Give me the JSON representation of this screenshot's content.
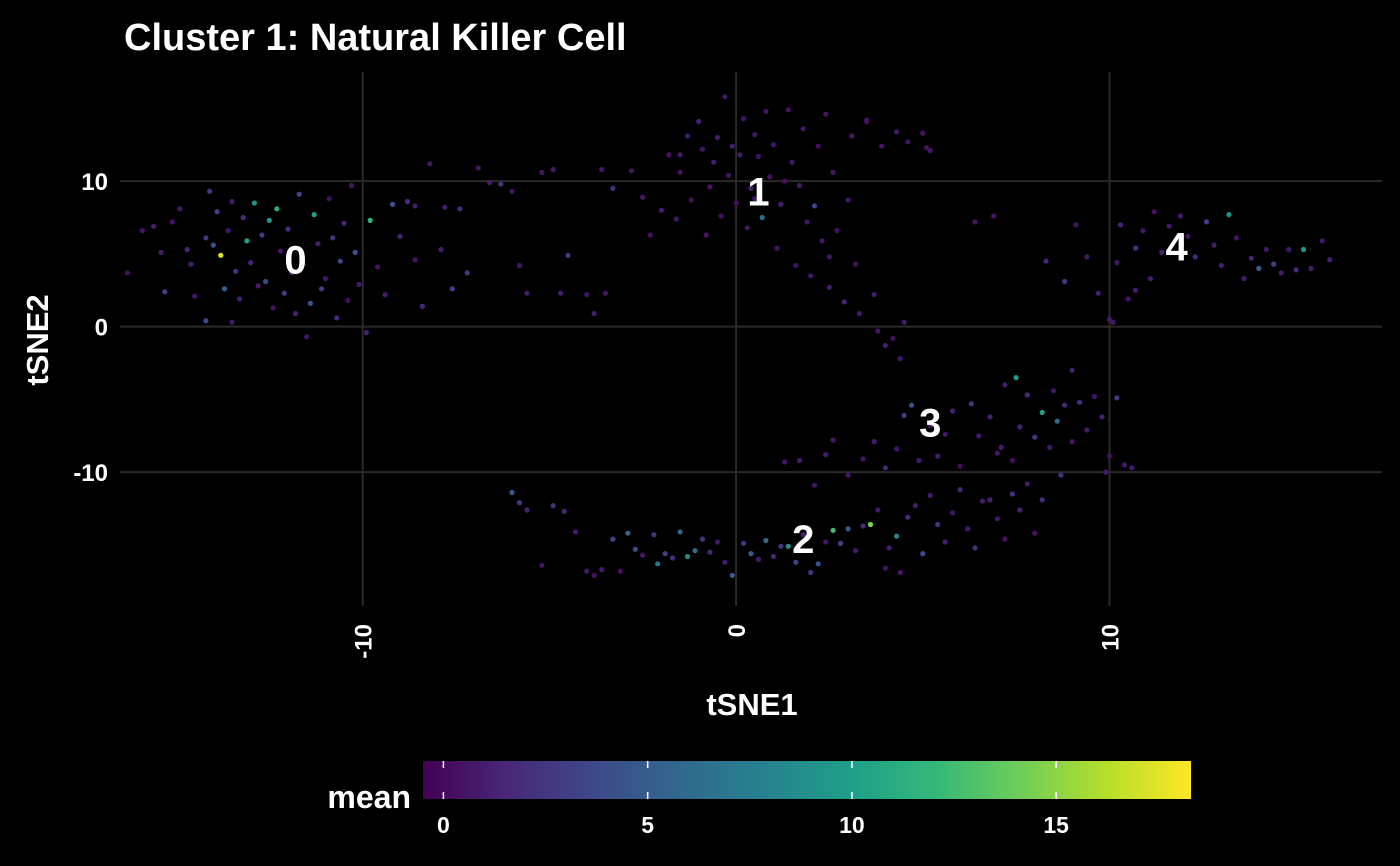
{
  "chart_data": {
    "type": "scatter",
    "title": "Cluster 1: Natural Killer Cell",
    "xlabel": "tSNE1",
    "ylabel": "tSNE2",
    "xlim": [
      -16.5,
      17.3
    ],
    "ylim": [
      -19.2,
      17.5
    ],
    "x_ticks": [
      -10,
      0,
      10
    ],
    "x_tick_labels": [
      "-10",
      "0",
      "10"
    ],
    "y_ticks": [
      -10,
      0,
      10
    ],
    "y_tick_labels": [
      "-10",
      "0",
      "10"
    ],
    "grid": true,
    "background": "#000000",
    "color_scale": {
      "name": "viridis",
      "title": "mean",
      "min": -0.5,
      "max": 18.3,
      "ticks": [
        0,
        5,
        10,
        15
      ],
      "tick_labels": [
        "0",
        "5",
        "10",
        "15"
      ],
      "legend_position": "bottom",
      "colors": [
        "#440154",
        "#482878",
        "#3e4989",
        "#31688e",
        "#26828e",
        "#1f9e89",
        "#35b779",
        "#6ece58",
        "#b5de2b",
        "#fde725"
      ]
    },
    "cluster_labels": [
      {
        "text": "0",
        "x": -11.8,
        "y": 4.6
      },
      {
        "text": "1",
        "x": 0.6,
        "y": 9.3
      },
      {
        "text": "2",
        "x": 1.8,
        "y": -14.6
      },
      {
        "text": "3",
        "x": 5.2,
        "y": -6.6
      },
      {
        "text": "4",
        "x": 11.8,
        "y": 5.5
      }
    ],
    "points": [
      [
        -16.3,
        3.7,
        0.3
      ],
      [
        -15.9,
        6.6,
        0.4
      ],
      [
        -15.6,
        6.9,
        1.2
      ],
      [
        -15.4,
        5.1,
        0.8
      ],
      [
        -15.1,
        7.2,
        0.5
      ],
      [
        -14.9,
        8.1,
        0.6
      ],
      [
        -14.7,
        5.3,
        1.5
      ],
      [
        -14.6,
        4.3,
        0.9
      ],
      [
        -14.5,
        2.1,
        0.7
      ],
      [
        -14.2,
        6.1,
        2.1
      ],
      [
        -14.1,
        9.3,
        2.4
      ],
      [
        -14.0,
        5.6,
        4.3
      ],
      [
        -13.9,
        7.9,
        3.1
      ],
      [
        -13.8,
        4.9,
        17.5
      ],
      [
        -13.7,
        2.6,
        5.5
      ],
      [
        -13.6,
        6.6,
        0.6
      ],
      [
        -13.5,
        8.6,
        0.9
      ],
      [
        -13.4,
        3.8,
        2.2
      ],
      [
        -13.3,
        1.9,
        1.1
      ],
      [
        -13.2,
        7.5,
        1.8
      ],
      [
        -13.1,
        5.9,
        10.1
      ],
      [
        -13.0,
        4.4,
        1.4
      ],
      [
        -12.9,
        8.5,
        8.8
      ],
      [
        -12.8,
        2.8,
        0.8
      ],
      [
        -12.7,
        6.3,
        2.6
      ],
      [
        -12.6,
        3.1,
        3.7
      ],
      [
        -12.5,
        7.3,
        9.2
      ],
      [
        -12.4,
        1.3,
        0.4
      ],
      [
        -12.3,
        8.1,
        11.2
      ],
      [
        -12.2,
        5.2,
        0.7
      ],
      [
        -12.1,
        2.3,
        2.9
      ],
      [
        -12.0,
        6.7,
        1.6
      ],
      [
        -11.9,
        3.7,
        0.9
      ],
      [
        -11.8,
        0.9,
        1.3
      ],
      [
        -11.7,
        9.1,
        3.3
      ],
      [
        -11.6,
        4.3,
        2.0
      ],
      [
        -11.5,
        -0.7,
        0.5
      ],
      [
        -11.4,
        1.6,
        4.4
      ],
      [
        -11.3,
        7.7,
        10.2
      ],
      [
        -11.2,
        5.7,
        1.1
      ],
      [
        -11.1,
        2.6,
        3.0
      ],
      [
        -11.0,
        3.3,
        0.6
      ],
      [
        -10.9,
        8.8,
        0.4
      ],
      [
        -10.8,
        6.1,
        2.4
      ],
      [
        -10.7,
        0.6,
        1.7
      ],
      [
        -10.6,
        4.5,
        3.4
      ],
      [
        -10.5,
        7.1,
        1.1
      ],
      [
        -10.4,
        1.8,
        0.3
      ],
      [
        -10.3,
        9.7,
        0.7
      ],
      [
        -10.2,
        5.1,
        3.9
      ],
      [
        -10.1,
        2.9,
        0.8
      ],
      [
        -9.9,
        -0.4,
        1.2
      ],
      [
        -9.8,
        7.3,
        11.8
      ],
      [
        -9.6,
        4.1,
        0.5
      ],
      [
        -9.4,
        2.2,
        0.9
      ],
      [
        -9.2,
        8.4,
        4.5
      ],
      [
        -9.0,
        6.2,
        1.3
      ],
      [
        -8.8,
        8.6,
        2.0
      ],
      [
        -8.6,
        4.6,
        0.4
      ],
      [
        -8.4,
        1.4,
        1.7
      ],
      [
        -8.2,
        11.2,
        0.6
      ],
      [
        -7.9,
        5.3,
        1.0
      ],
      [
        -7.6,
        2.6,
        3.2
      ],
      [
        -7.4,
        8.1,
        1.8
      ],
      [
        -7.2,
        3.7,
        2.6
      ],
      [
        -6.9,
        10.9,
        0.5
      ],
      [
        -6.6,
        9.9,
        0.8
      ],
      [
        -6.3,
        9.8,
        2.5
      ],
      [
        -6.0,
        9.3,
        0.4
      ],
      [
        -5.8,
        4.2,
        0.6
      ],
      [
        -5.6,
        2.3,
        0.9
      ],
      [
        -5.2,
        10.6,
        0.5
      ],
      [
        -4.9,
        10.8,
        0.7
      ],
      [
        -4.7,
        2.3,
        1.1
      ],
      [
        -4.5,
        4.9,
        2.8
      ],
      [
        -4.0,
        2.2,
        0.3
      ],
      [
        -3.8,
        0.9,
        1.0
      ],
      [
        -3.5,
        2.3,
        0.5
      ],
      [
        -3.3,
        9.5,
        2.1
      ],
      [
        -2.8,
        10.7,
        0.4
      ],
      [
        -2.5,
        8.9,
        0.7
      ],
      [
        -2.3,
        6.3,
        0.3
      ],
      [
        -2.0,
        8.0,
        0.9
      ],
      [
        -1.8,
        11.8,
        0.5
      ],
      [
        -1.6,
        7.4,
        0.6
      ],
      [
        -1.5,
        10.6,
        0.4
      ],
      [
        -1.3,
        13.1,
        0.8
      ],
      [
        -1.2,
        8.7,
        0.3
      ],
      [
        -1.0,
        14.1,
        1.2
      ],
      [
        -0.9,
        12.2,
        0.5
      ],
      [
        -0.8,
        6.3,
        0.6
      ],
      [
        -0.7,
        9.6,
        0.4
      ],
      [
        -0.6,
        11.3,
        1.0
      ],
      [
        -0.5,
        13.0,
        0.7
      ],
      [
        -0.4,
        7.6,
        0.3
      ],
      [
        -0.3,
        15.8,
        0.5
      ],
      [
        -0.2,
        10.4,
        0.4
      ],
      [
        -0.1,
        12.4,
        0.9
      ],
      [
        0.0,
        8.5,
        0.3
      ],
      [
        0.1,
        11.8,
        0.7
      ],
      [
        0.2,
        14.3,
        0.4
      ],
      [
        0.3,
        6.8,
        0.5
      ],
      [
        0.4,
        9.5,
        1.1
      ],
      [
        0.5,
        13.2,
        0.6
      ],
      [
        0.6,
        11.7,
        0.4
      ],
      [
        0.7,
        7.5,
        6.3
      ],
      [
        0.8,
        14.8,
        0.5
      ],
      [
        0.9,
        10.3,
        0.3
      ],
      [
        1.0,
        12.5,
        0.7
      ],
      [
        1.1,
        5.4,
        0.5
      ],
      [
        1.2,
        8.4,
        1.0
      ],
      [
        1.4,
        14.9,
        0.4
      ],
      [
        1.5,
        11.3,
        0.6
      ],
      [
        1.6,
        4.2,
        0.3
      ],
      [
        1.7,
        9.7,
        0.8
      ],
      [
        1.8,
        13.6,
        0.5
      ],
      [
        1.9,
        7.2,
        0.4
      ],
      [
        2.0,
        3.5,
        0.7
      ],
      [
        2.1,
        8.3,
        3.6
      ],
      [
        2.2,
        12.4,
        0.3
      ],
      [
        2.3,
        5.9,
        0.6
      ],
      [
        2.4,
        14.6,
        0.5
      ],
      [
        2.5,
        2.7,
        0.9
      ],
      [
        2.6,
        10.6,
        0.4
      ],
      [
        2.7,
        6.6,
        0.3
      ],
      [
        2.9,
        1.7,
        1.2
      ],
      [
        3.0,
        8.7,
        0.5
      ],
      [
        3.1,
        13.1,
        0.7
      ],
      [
        3.2,
        4.3,
        0.4
      ],
      [
        3.3,
        0.9,
        0.6
      ],
      [
        3.5,
        14.1,
        0.3
      ],
      [
        3.7,
        2.2,
        0.8
      ],
      [
        3.8,
        -0.3,
        0.5
      ],
      [
        3.9,
        12.4,
        0.4
      ],
      [
        4.0,
        -1.3,
        1.0
      ],
      [
        4.2,
        -0.8,
        0.3
      ],
      [
        4.3,
        13.4,
        0.6
      ],
      [
        4.4,
        -2.2,
        0.5
      ],
      [
        4.5,
        0.3,
        0.9
      ],
      [
        4.6,
        12.7,
        0.4
      ],
      [
        5.0,
        13.3,
        0.5
      ],
      [
        5.2,
        12.1,
        0.7
      ],
      [
        -6.0,
        -11.4,
        4.8
      ],
      [
        -5.8,
        -12.1,
        2.5
      ],
      [
        -5.6,
        -12.6,
        1.1
      ],
      [
        -5.2,
        -16.4,
        0.5
      ],
      [
        -4.9,
        -12.3,
        2.0
      ],
      [
        -4.6,
        -12.7,
        1.3
      ],
      [
        -4.3,
        -14.1,
        0.8
      ],
      [
        -4.0,
        -16.8,
        0.6
      ],
      [
        -3.8,
        -17.1,
        0.4
      ],
      [
        -3.6,
        -16.7,
        0.9
      ],
      [
        -3.3,
        -14.6,
        3.4
      ],
      [
        -3.1,
        -16.8,
        0.5
      ],
      [
        -2.9,
        -14.2,
        5.8
      ],
      [
        -2.7,
        -15.3,
        4.1
      ],
      [
        -2.5,
        -15.7,
        0.7
      ],
      [
        -2.2,
        -14.3,
        2.6
      ],
      [
        -2.1,
        -16.3,
        6.4
      ],
      [
        -1.9,
        -15.6,
        3.0
      ],
      [
        -1.7,
        -15.9,
        2.1
      ],
      [
        -1.5,
        -14.1,
        5.2
      ],
      [
        -1.3,
        -15.8,
        8.3
      ],
      [
        -1.1,
        -15.4,
        6.6
      ],
      [
        -0.9,
        -14.6,
        2.4
      ],
      [
        -0.7,
        -15.5,
        1.5
      ],
      [
        -0.5,
        -14.8,
        0.6
      ],
      [
        -0.3,
        -16.2,
        0.9
      ],
      [
        -0.1,
        -17.1,
        4.8
      ],
      [
        0.2,
        -14.9,
        2.3
      ],
      [
        0.4,
        -15.6,
        4.9
      ],
      [
        0.6,
        -16.0,
        0.8
      ],
      [
        0.8,
        -14.7,
        6.0
      ],
      [
        1.0,
        -15.8,
        1.4
      ],
      [
        1.2,
        -15.1,
        2.6
      ],
      [
        1.4,
        -15.1,
        8.8
      ],
      [
        1.6,
        -16.2,
        3.4
      ],
      [
        1.8,
        -14.3,
        1.2
      ],
      [
        2.0,
        -16.9,
        2.5
      ],
      [
        2.2,
        -16.3,
        4.4
      ],
      [
        2.4,
        -14.8,
        0.6
      ],
      [
        2.6,
        -14.0,
        12.5
      ],
      [
        2.8,
        -14.9,
        3.3
      ],
      [
        3.0,
        -13.9,
        4.6
      ],
      [
        3.2,
        -15.4,
        0.9
      ],
      [
        3.4,
        -13.7,
        1.8
      ],
      [
        3.6,
        -13.6,
        14.6
      ],
      [
        3.8,
        -12.6,
        0.7
      ],
      [
        4.0,
        -16.6,
        0.5
      ],
      [
        4.1,
        -15.2,
        1.0
      ],
      [
        4.3,
        -14.4,
        8.0
      ],
      [
        4.4,
        -16.9,
        0.6
      ],
      [
        4.6,
        -13.1,
        1.6
      ],
      [
        4.8,
        -12.3,
        0.9
      ],
      [
        5.0,
        -15.6,
        3.8
      ],
      [
        5.2,
        -11.6,
        0.8
      ],
      [
        5.4,
        -13.6,
        2.3
      ],
      [
        5.6,
        -14.8,
        1.0
      ],
      [
        5.8,
        -12.8,
        0.6
      ],
      [
        6.0,
        -11.2,
        1.5
      ],
      [
        6.2,
        -13.9,
        0.7
      ],
      [
        6.4,
        -15.2,
        2.2
      ],
      [
        6.6,
        -12.0,
        0.9
      ],
      [
        6.8,
        -11.9,
        1.2
      ],
      [
        7.0,
        -13.2,
        0.8
      ],
      [
        7.2,
        -14.6,
        0.5
      ],
      [
        7.4,
        -11.5,
        1.9
      ],
      [
        7.6,
        -12.6,
        1.2
      ],
      [
        7.8,
        -10.8,
        0.7
      ],
      [
        8.0,
        -14.2,
        0.4
      ],
      [
        8.2,
        -11.9,
        2.0
      ],
      [
        3.0,
        -10.2,
        0.6
      ],
      [
        3.4,
        -9.1,
        0.5
      ],
      [
        3.7,
        -7.9,
        0.9
      ],
      [
        4.0,
        -9.7,
        1.5
      ],
      [
        4.3,
        -8.4,
        0.4
      ],
      [
        4.5,
        -6.1,
        2.8
      ],
      [
        4.7,
        -5.4,
        4.3
      ],
      [
        4.9,
        -9.2,
        0.7
      ],
      [
        5.2,
        -6.8,
        0.5
      ],
      [
        5.4,
        -8.9,
        1.0
      ],
      [
        5.6,
        -7.4,
        0.6
      ],
      [
        5.8,
        -5.8,
        1.1
      ],
      [
        6.0,
        -9.6,
        0.3
      ],
      [
        6.3,
        -5.3,
        2.5
      ],
      [
        6.5,
        -7.5,
        0.7
      ],
      [
        6.8,
        -6.2,
        1.4
      ],
      [
        7.0,
        -8.7,
        0.5
      ],
      [
        7.2,
        -4.0,
        0.9
      ],
      [
        7.4,
        -9.2,
        0.4
      ],
      [
        7.6,
        -6.9,
        1.2
      ],
      [
        7.8,
        -4.7,
        1.8
      ],
      [
        8.0,
        -7.6,
        2.6
      ],
      [
        8.2,
        -5.9,
        10.2
      ],
      [
        8.4,
        -8.3,
        0.8
      ],
      [
        8.6,
        -6.5,
        6.2
      ],
      [
        8.8,
        -5.4,
        1.5
      ],
      [
        9.0,
        -7.9,
        0.6
      ],
      [
        9.2,
        -5.2,
        2.0
      ],
      [
        9.4,
        -7.1,
        0.9
      ],
      [
        9.6,
        -4.8,
        0.5
      ],
      [
        9.8,
        -6.2,
        1.1
      ],
      [
        10.0,
        -8.9,
        0.3
      ],
      [
        10.2,
        -4.9,
        2.4
      ],
      [
        10.4,
        -9.5,
        0.7
      ],
      [
        10.6,
        -9.7,
        0.6
      ],
      [
        9.9,
        -10.0,
        0.8
      ],
      [
        8.5,
        -4.4,
        0.4
      ],
      [
        9.0,
        -3.0,
        1.2
      ],
      [
        7.1,
        -8.3,
        0.9
      ],
      [
        8.7,
        -10.2,
        2.2
      ],
      [
        1.3,
        -9.3,
        0.5
      ],
      [
        1.7,
        -9.2,
        0.8
      ],
      [
        2.1,
        -10.9,
        0.4
      ],
      [
        2.4,
        -8.8,
        1.0
      ],
      [
        2.6,
        -7.8,
        0.6
      ],
      [
        7.5,
        -3.5,
        9.6
      ],
      [
        -15.3,
        2.4,
        2.9
      ],
      [
        -14.2,
        0.4,
        3.8
      ],
      [
        -13.5,
        0.3,
        0.8
      ],
      [
        8.8,
        3.1,
        2.7
      ],
      [
        9.1,
        7.0,
        0.5
      ],
      [
        9.4,
        4.8,
        0.8
      ],
      [
        9.7,
        2.3,
        1.1
      ],
      [
        10.0,
        0.5,
        0.6
      ],
      [
        10.2,
        4.4,
        0.4
      ],
      [
        10.3,
        7.0,
        1.3
      ],
      [
        10.5,
        1.9,
        0.5
      ],
      [
        10.7,
        5.4,
        2.4
      ],
      [
        10.9,
        6.6,
        0.7
      ],
      [
        11.1,
        3.3,
        0.9
      ],
      [
        11.2,
        7.9,
        0.4
      ],
      [
        11.4,
        5.1,
        1.2
      ],
      [
        11.6,
        6.9,
        0.6
      ],
      [
        11.9,
        7.6,
        0.9
      ],
      [
        12.1,
        6.2,
        0.5
      ],
      [
        12.3,
        4.8,
        1.6
      ],
      [
        12.6,
        7.2,
        3.1
      ],
      [
        12.8,
        5.6,
        0.8
      ],
      [
        13.0,
        4.2,
        1.0
      ],
      [
        13.2,
        7.7,
        9.0
      ],
      [
        13.4,
        6.1,
        0.5
      ],
      [
        13.6,
        3.3,
        0.9
      ],
      [
        13.8,
        4.7,
        1.3
      ],
      [
        14.0,
        4.0,
        5.2
      ],
      [
        14.2,
        5.3,
        0.6
      ],
      [
        14.4,
        4.3,
        3.4
      ],
      [
        14.6,
        3.7,
        0.9
      ],
      [
        14.8,
        5.3,
        0.7
      ],
      [
        15.0,
        3.9,
        1.8
      ],
      [
        15.2,
        5.3,
        9.1
      ],
      [
        15.4,
        4.0,
        0.9
      ],
      [
        15.7,
        5.9,
        0.6
      ],
      [
        15.9,
        4.6,
        1.2
      ],
      [
        10.1,
        0.3,
        0.7
      ],
      [
        8.3,
        4.5,
        1.3
      ],
      [
        10.7,
        2.5,
        0.9
      ],
      [
        6.9,
        7.6,
        0.4
      ],
      [
        6.4,
        7.2,
        0.5
      ],
      [
        -1.5,
        11.8,
        0.7
      ],
      [
        -3.6,
        10.8,
        0.6
      ],
      [
        5.1,
        12.3,
        0.3
      ],
      [
        3.5,
        14.2,
        0.5
      ],
      [
        -7.8,
        8.2,
        1.0
      ],
      [
        -8.6,
        8.3,
        0.8
      ],
      [
        0.5,
        8.8,
        0.4
      ],
      [
        2.5,
        4.8,
        0.6
      ],
      [
        1.3,
        10.0,
        0.3
      ]
    ]
  }
}
